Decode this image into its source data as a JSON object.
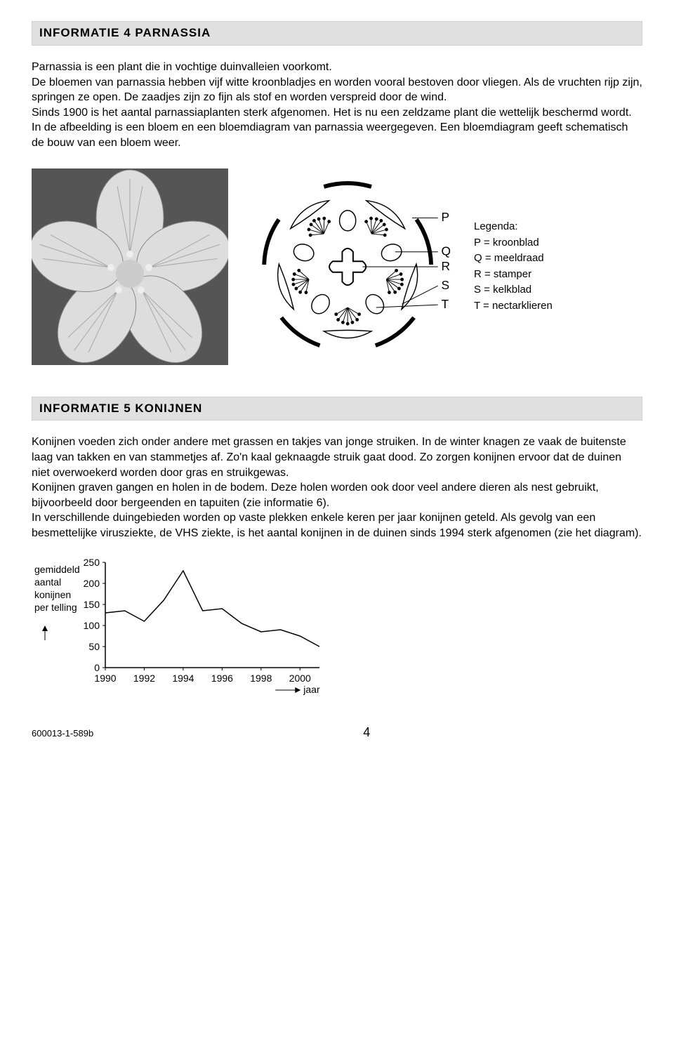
{
  "section4": {
    "title": "INFORMATIE 4 PARNASSIA",
    "paragraph1": "Parnassia is een plant die in vochtige duinvalleien voorkomt.\nDe bloemen van parnassia hebben vijf witte kroonbladjes en worden vooral bestoven door vliegen. Als de vruchten rijp zijn, springen ze open. De zaadjes zijn zo fijn als stof en worden verspreid door de wind.\nSinds 1900 is het aantal parnassiaplanten sterk afgenomen. Het is nu een zeldzame plant die wettelijk beschermd wordt.\nIn de afbeelding is een bloem en een bloemdiagram van parnassia weergegeven. Een bloemdiagram geeft schematisch de bouw van een bloem weer."
  },
  "flowerDiagram": {
    "labels": {
      "P": "P",
      "Q": "Q",
      "R": "R",
      "S": "S",
      "T": "T"
    }
  },
  "legend": {
    "title": "Legenda:",
    "items": [
      {
        "key": "P",
        "text": "P = kroonblad"
      },
      {
        "key": "Q",
        "text": "Q = meeldraad"
      },
      {
        "key": "R",
        "text": "R = stamper"
      },
      {
        "key": "S",
        "text": "S = kelkblad"
      },
      {
        "key": "T",
        "text": "T = nectarklieren"
      }
    ]
  },
  "section5": {
    "title": "INFORMATIE 5 KONIJNEN",
    "paragraph1": "Konijnen voeden zich onder andere met grassen en takjes van jonge struiken. In de winter knagen ze vaak de buitenste laag van takken en van stammetjes af. Zo'n kaal geknaagde struik gaat dood. Zo zorgen konijnen ervoor dat de duinen niet overwoekerd worden door gras en struikgewas.\nKonijnen graven gangen en holen in de bodem. Deze holen worden ook door veel andere dieren als nest gebruikt, bijvoorbeeld door bergeenden en tapuiten (zie informatie 6).\nIn verschillende duingebieden worden op vaste plekken enkele keren per jaar konijnen geteld. Als gevolg van een besmettelijke virusziekte, de VHS ziekte, is het aantal konijnen in de duinen sinds 1994 sterk afgenomen (zie het diagram)."
  },
  "chart": {
    "type": "line",
    "ylabel_lines": [
      "gemiddeld",
      "aantal",
      "konijnen",
      "per telling"
    ],
    "xlabel": "jaar",
    "ylim": [
      0,
      250
    ],
    "ytick_step": 50,
    "yticks": [
      0,
      50,
      100,
      150,
      200,
      250
    ],
    "xticks": [
      1990,
      1992,
      1994,
      1996,
      1998,
      2000
    ],
    "xlim": [
      1990,
      2001
    ],
    "series": {
      "x": [
        1990,
        1991,
        1992,
        1993,
        1994,
        1995,
        1996,
        1997,
        1998,
        1999,
        2000,
        2001
      ],
      "y": [
        130,
        135,
        110,
        160,
        230,
        135,
        140,
        105,
        85,
        90,
        75,
        50
      ]
    },
    "line_color": "#000000",
    "line_width": 1.5,
    "axis_color": "#000000",
    "tick_fontsize": 14,
    "label_fontsize": 14,
    "background_color": "#ffffff"
  },
  "footer": {
    "code": "600013-1-589b",
    "page": "4"
  }
}
